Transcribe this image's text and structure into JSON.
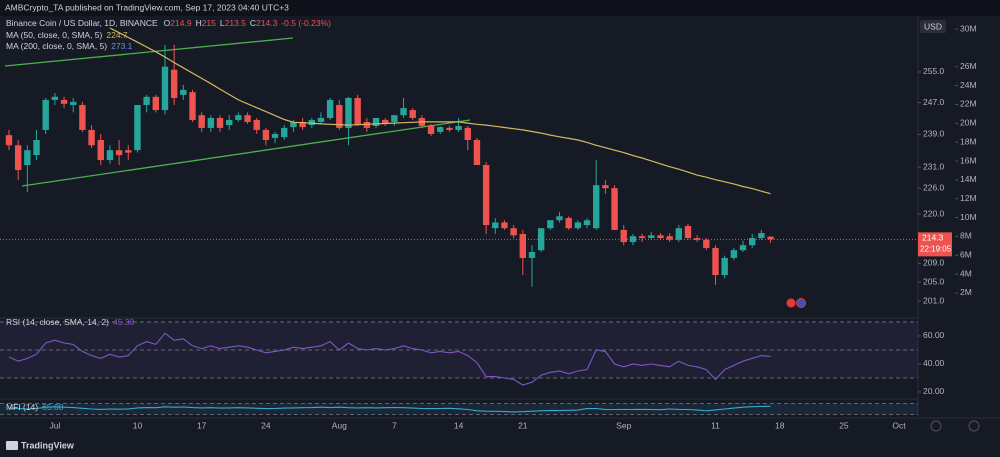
{
  "header": {
    "publisher": "AMBCrypto_TA published on TradingView.com, Sep 17, 2023 04:40 UTC+3",
    "brand": "TradingView"
  },
  "chart_data": {
    "type": "candlestick",
    "symbol": "Binance Coin / US Dollar, 1D, BINANCE",
    "ohlc_labels": [
      "O",
      "H",
      "L",
      "C"
    ],
    "change": "-0.5 (-0.23%)",
    "currency": "USD",
    "countdown": "22:19:05",
    "categories": [
      null,
      null,
      null,
      null,
      null,
      "Jul",
      null,
      null,
      null,
      null,
      null,
      null,
      null,
      null,
      "10",
      null,
      null,
      null,
      null,
      null,
      null,
      "17",
      null,
      null,
      null,
      null,
      null,
      null,
      "24",
      null,
      null,
      null,
      null,
      null,
      null,
      null,
      "Aug",
      null,
      null,
      null,
      null,
      null,
      "7",
      null,
      null,
      null,
      null,
      null,
      null,
      "14",
      null,
      null,
      null,
      null,
      null,
      null,
      "21",
      null,
      null,
      null,
      null,
      null,
      null,
      null,
      null,
      null,
      null,
      "Sep",
      null,
      null,
      null,
      null,
      null,
      null,
      null,
      null,
      null,
      "11",
      null,
      null,
      null,
      null,
      null,
      null,
      "18",
      null,
      null,
      null,
      null,
      null,
      null,
      "25",
      null,
      null,
      null,
      null,
      null,
      "Oct"
    ],
    "open": [
      238.8,
      236.3,
      231.5,
      233.9,
      240.1,
      247.7,
      247.7,
      246.4,
      246.4,
      240.1,
      237.6,
      232.7,
      235.1,
      235.1,
      235.1,
      246.4,
      248.5,
      245.1,
      255.6,
      249.0,
      249.7,
      243.8,
      240.6,
      243.1,
      241.3,
      242.6,
      243.8,
      242.6,
      240.1,
      238.1,
      238.3,
      240.8,
      242.1,
      241.3,
      242.1,
      243.1,
      246.4,
      240.6,
      248.2,
      242.1,
      241.1,
      242.6,
      242.1,
      243.8,
      245.1,
      243.1,
      241.3,
      239.6,
      240.6,
      240.1,
      240.6,
      237.6,
      231.5,
      216.8,
      218.1,
      216.8,
      215.5,
      210.2,
      211.9,
      216.8,
      218.6,
      219.1,
      216.8,
      217.5,
      216.8,
      226.7,
      226.0,
      216.4,
      213.7,
      215.0,
      214.6,
      215.2,
      215.0,
      214.2,
      217.3,
      214.6,
      214.2,
      212.4,
      206.5,
      210.2,
      211.9,
      213.0,
      214.6,
      214.9,
      null,
      null,
      null,
      null,
      null,
      null,
      null,
      null,
      null,
      null,
      null,
      null,
      null,
      null
    ],
    "high": [
      240.1,
      237.6,
      236.3,
      240.1,
      248.2,
      249.5,
      248.5,
      248.2,
      247.2,
      241.3,
      239.1,
      236.3,
      237.6,
      236.3,
      246.4,
      249.0,
      249.0,
      262.3,
      262.3,
      251.6,
      250.3,
      244.5,
      243.8,
      243.8,
      243.8,
      244.5,
      244.5,
      243.1,
      240.6,
      239.6,
      241.3,
      242.6,
      243.1,
      243.1,
      244.5,
      248.2,
      247.7,
      248.5,
      249.0,
      243.1,
      243.1,
      243.1,
      243.8,
      248.2,
      245.6,
      243.8,
      241.6,
      241.1,
      241.1,
      243.1,
      241.1,
      238.1,
      232.2,
      219.1,
      218.6,
      217.5,
      216.4,
      213.0,
      216.8,
      218.6,
      220.5,
      219.5,
      218.6,
      219.1,
      232.7,
      227.9,
      226.7,
      217.5,
      215.5,
      215.5,
      216.0,
      215.7,
      215.7,
      217.5,
      217.8,
      215.2,
      214.6,
      213.0,
      210.7,
      212.4,
      214.0,
      215.5,
      216.4,
      215.0,
      null,
      null,
      null,
      null,
      null,
      null,
      null,
      null,
      null,
      null,
      null,
      null,
      null,
      null
    ],
    "low": [
      235.1,
      227.9,
      225.1,
      232.7,
      239.1,
      246.4,
      245.6,
      244.5,
      239.6,
      235.6,
      231.5,
      231.8,
      231.5,
      232.7,
      234.5,
      244.5,
      244.5,
      244.0,
      246.4,
      247.7,
      242.1,
      239.6,
      239.6,
      239.6,
      240.1,
      242.1,
      241.6,
      239.1,
      236.3,
      236.8,
      237.6,
      239.6,
      240.1,
      240.6,
      241.6,
      242.6,
      240.1,
      236.3,
      241.1,
      239.6,
      240.6,
      241.1,
      241.1,
      243.1,
      242.6,
      240.6,
      238.6,
      239.1,
      239.6,
      239.6,
      235.1,
      231.5,
      215.5,
      215.5,
      216.4,
      214.6,
      206.5,
      204.0,
      211.5,
      216.4,
      218.1,
      216.4,
      216.4,
      216.8,
      216.4,
      224.7,
      216.4,
      213.0,
      213.0,
      213.7,
      214.2,
      214.2,
      213.7,
      213.7,
      214.2,
      213.7,
      211.9,
      204.4,
      205.8,
      209.7,
      211.5,
      212.4,
      214.2,
      213.5,
      null,
      null,
      null,
      null,
      null,
      null,
      null,
      null,
      null,
      null,
      null,
      null,
      null,
      null
    ],
    "close": [
      236.3,
      230.3,
      235.1,
      237.6,
      247.7,
      248.5,
      246.7,
      247.2,
      240.1,
      236.3,
      232.7,
      235.1,
      233.9,
      234.5,
      246.4,
      248.5,
      245.1,
      256.4,
      248.2,
      250.3,
      242.6,
      240.6,
      243.1,
      240.6,
      242.6,
      243.8,
      242.1,
      240.1,
      237.6,
      239.1,
      240.6,
      242.1,
      240.8,
      242.6,
      243.1,
      247.7,
      240.6,
      248.2,
      241.3,
      240.6,
      243.1,
      241.6,
      243.8,
      245.6,
      243.1,
      241.1,
      239.1,
      240.8,
      240.1,
      241.1,
      237.6,
      231.5,
      217.5,
      218.1,
      216.8,
      215.2,
      210.2,
      211.5,
      216.8,
      218.6,
      219.5,
      216.8,
      218.1,
      218.6,
      226.7,
      226.0,
      216.4,
      213.7,
      215.0,
      214.6,
      215.2,
      214.6,
      214.2,
      216.8,
      214.6,
      214.2,
      212.4,
      206.5,
      210.2,
      211.9,
      213.0,
      214.6,
      215.7,
      214.3,
      null,
      null,
      null,
      null,
      null,
      null,
      null,
      null,
      null,
      null,
      null,
      null,
      null,
      null
    ],
    "colors": {
      "up": "#26a69a",
      "down": "#ef5350"
    },
    "log_scale": true,
    "ylim": [
      197.9,
      269.7
    ],
    "yticks": [
      {
        "value": 201,
        "label": "201.0"
      },
      {
        "value": 205,
        "label": "205.0"
      },
      {
        "value": 209,
        "label": "209.0"
      },
      {
        "value": 220,
        "label": "220.0"
      },
      {
        "value": 226,
        "label": "226.0"
      },
      {
        "value": 231,
        "label": "231.0"
      },
      {
        "value": 239,
        "label": "239.0"
      },
      {
        "value": 247,
        "label": "247.0"
      },
      {
        "value": 255,
        "label": "255.0"
      }
    ],
    "y2lim": [
      -440000,
      31170000
    ],
    "y2ticks": [
      {
        "value": 2000000,
        "label": "2M"
      },
      {
        "value": 4000000,
        "label": "4M"
      },
      {
        "value": 6000000,
        "label": "6M"
      },
      {
        "value": 8000000,
        "label": "8M"
      },
      {
        "value": 10000000,
        "label": "10M"
      },
      {
        "value": 12000000,
        "label": "12M"
      },
      {
        "value": 14000000,
        "label": "14M"
      },
      {
        "value": 16000000,
        "label": "16M"
      },
      {
        "value": 18000000,
        "label": "18M"
      },
      {
        "value": 20000000,
        "label": "20M"
      },
      {
        "value": 22000000,
        "label": "22M"
      },
      {
        "value": 24000000,
        "label": "24M"
      },
      {
        "value": 26000000,
        "label": "26M"
      },
      {
        "value": 30000000,
        "label": "30M"
      }
    ],
    "series": [
      {
        "name": "MA (50, close, 0, SMA, 5)",
        "color": "#d4b95e",
        "values": [
          null,
          null,
          null,
          null,
          null,
          null,
          null,
          null,
          null,
          null,
          null,
          266.9,
          265.6,
          264.3,
          263.0,
          261.7,
          260.4,
          259.0,
          257.5,
          256.1,
          254.7,
          253.3,
          251.9,
          250.5,
          249.1,
          247.7,
          246.7,
          245.7,
          244.7,
          243.7,
          242.7,
          242.0,
          241.9,
          241.8,
          241.6,
          241.5,
          241.4,
          241.3,
          241.4,
          241.5,
          241.6,
          241.7,
          241.8,
          241.9,
          242.0,
          242.1,
          242.1,
          242.1,
          242.1,
          242.1,
          241.8,
          241.5,
          241.3,
          241.0,
          240.7,
          240.4,
          240.1,
          239.7,
          239.3,
          238.8,
          238.4,
          238.0,
          237.6,
          237.0,
          236.3,
          235.7,
          235.1,
          234.5,
          233.8,
          233.2,
          232.5,
          231.8,
          231.1,
          230.5,
          229.8,
          229.1,
          228.6,
          228.0,
          227.5,
          227.0,
          226.4,
          225.9,
          225.3,
          224.7,
          null,
          null,
          null,
          null,
          null,
          null,
          null,
          null,
          null,
          null,
          null,
          null,
          null,
          null
        ]
      }
    ],
    "indicators": [
      {
        "name": "MA (200, close, 0, SMA, 5)",
        "value": 273.1,
        "color": "#6f8fe0"
      }
    ],
    "rsi": {
      "name": "RSI (14, close, SMA, 14, 2)",
      "color": "#7e57c2",
      "ylim": [
        15.7,
        71.4
      ],
      "yticks": [
        {
          "value": 60,
          "label": "60.00"
        },
        {
          "value": 40,
          "label": "40.00"
        },
        {
          "value": 20,
          "label": "20.00"
        }
      ],
      "levels": [
        70,
        50,
        30
      ],
      "values": [
        45,
        42,
        44,
        47,
        55,
        57,
        55,
        54,
        49,
        46,
        44,
        47,
        45,
        46,
        53,
        56,
        54,
        62,
        57,
        58,
        53,
        51,
        53,
        51,
        52,
        53,
        52,
        50,
        48,
        49,
        50,
        52,
        51,
        52,
        53,
        56,
        50,
        55,
        51,
        50,
        51,
        50,
        51,
        53,
        51,
        50,
        48,
        49,
        48,
        49,
        46,
        41,
        31,
        31,
        30,
        29,
        25,
        27,
        32,
        34,
        35,
        33,
        35,
        36,
        50,
        49,
        40,
        38,
        40,
        39,
        40,
        39,
        38,
        42,
        39,
        38,
        36,
        29,
        36,
        39,
        42,
        44,
        46,
        45.38,
        null,
        null,
        null,
        null,
        null,
        null,
        null,
        null,
        null,
        null,
        null,
        null,
        null,
        null
      ]
    },
    "mfi": {
      "name": "MFI (14)",
      "value_label": "65.00",
      "color": "#3ba7d1",
      "ylim": [
        0,
        100
      ],
      "levels": [
        80,
        20
      ],
      "values": [
        55,
        52,
        50,
        53,
        60,
        62,
        60,
        58,
        54,
        50,
        48,
        50,
        49,
        50,
        56,
        58,
        57,
        62,
        60,
        61,
        58,
        56,
        57,
        55,
        56,
        57,
        56,
        54,
        52,
        53,
        55,
        56,
        57,
        58,
        60,
        58,
        60,
        57,
        56,
        57,
        56,
        57,
        58,
        57,
        55,
        53,
        52,
        53,
        54,
        51,
        47,
        40,
        38,
        37,
        36,
        34,
        35,
        38,
        40,
        42,
        41,
        43,
        44,
        52,
        53,
        48,
        47,
        48,
        47,
        48,
        47,
        46,
        50,
        48,
        47,
        44,
        40,
        45,
        50,
        55,
        60,
        63,
        64,
        65,
        null,
        null,
        null,
        null,
        null,
        null,
        null,
        null,
        null,
        null,
        null,
        null,
        null,
        null
      ]
    }
  }
}
